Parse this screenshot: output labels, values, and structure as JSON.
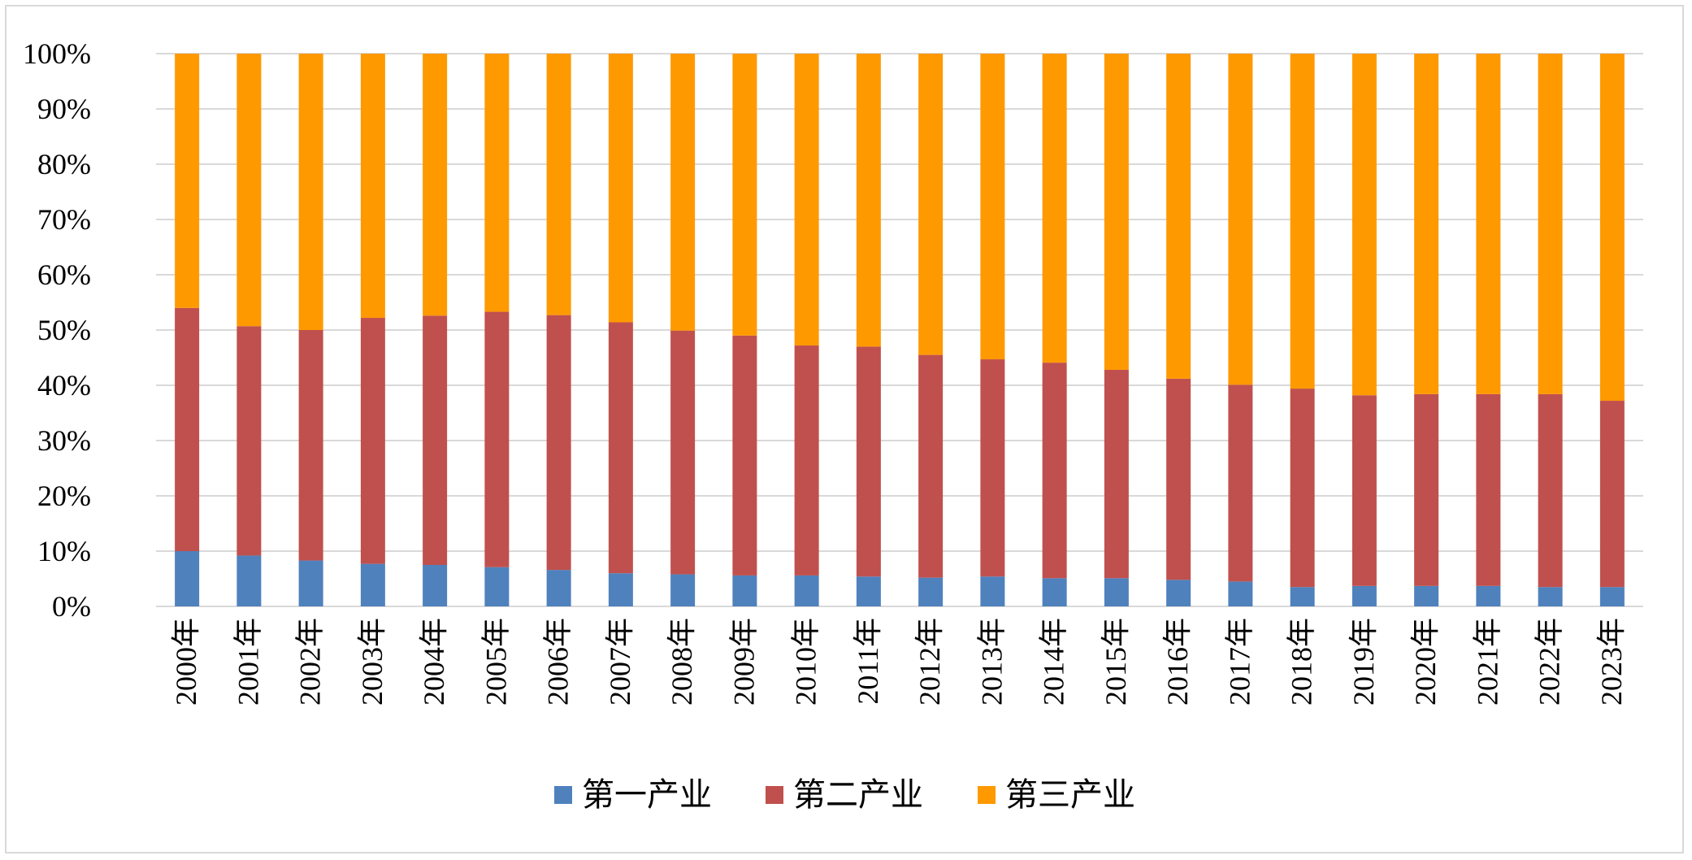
{
  "chart_data": {
    "type": "bar",
    "stacked": true,
    "normalized": true,
    "categories": [
      "2000年",
      "2001年",
      "2002年",
      "2003年",
      "2004年",
      "2005年",
      "2006年",
      "2007年",
      "2008年",
      "2009年",
      "2010年",
      "2011年",
      "2012年",
      "2013年",
      "2014年",
      "2015年",
      "2016年",
      "2017年",
      "2018年",
      "2019年",
      "2020年",
      "2021年",
      "2022年",
      "2023年"
    ],
    "series": [
      {
        "name": "第一产业",
        "color": "#4f81bd",
        "values": [
          10.0,
          9.2,
          8.3,
          7.7,
          7.5,
          7.1,
          6.6,
          6.0,
          5.8,
          5.6,
          5.6,
          5.4,
          5.2,
          5.4,
          5.1,
          5.1,
          4.8,
          4.5,
          3.5,
          3.7,
          3.7,
          3.7,
          3.5,
          3.5
        ]
      },
      {
        "name": "第二产业",
        "color": "#c0504d",
        "values": [
          44.0,
          41.5,
          41.7,
          44.5,
          45.1,
          46.2,
          46.1,
          45.4,
          44.1,
          43.4,
          41.6,
          41.6,
          40.3,
          39.3,
          39.0,
          37.7,
          36.4,
          35.6,
          35.9,
          34.5,
          34.7,
          34.7,
          34.9,
          33.7
        ]
      },
      {
        "name": "第三产业",
        "color": "#ff9900",
        "values": [
          46.0,
          49.3,
          50.0,
          47.8,
          47.4,
          46.7,
          47.3,
          48.6,
          50.1,
          51.0,
          52.8,
          53.0,
          54.5,
          55.3,
          55.9,
          57.2,
          58.8,
          59.9,
          60.6,
          61.8,
          61.6,
          61.6,
          61.6,
          62.8
        ]
      }
    ],
    "yticks": [
      "0%",
      "10%",
      "20%",
      "30%",
      "40%",
      "50%",
      "60%",
      "70%",
      "80%",
      "90%",
      "100%"
    ],
    "ylim": [
      0,
      100
    ],
    "grid": true,
    "legend_position": "bottom"
  }
}
